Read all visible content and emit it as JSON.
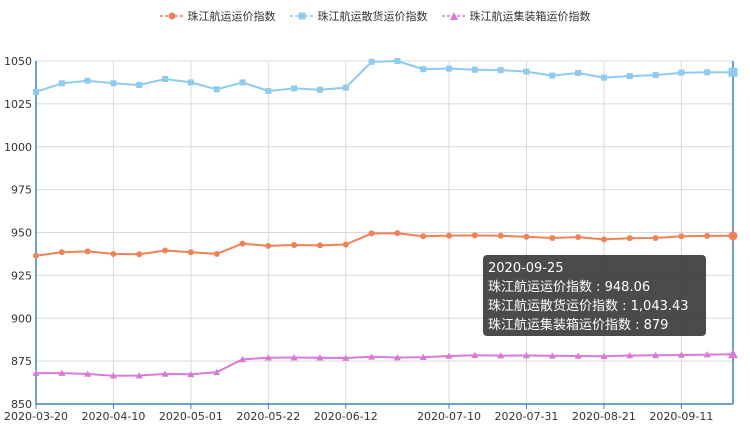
{
  "chart_data": {
    "type": "line",
    "title": "",
    "xlabel": "",
    "ylabel": "",
    "ylim": [
      850,
      1050
    ],
    "yticks": [
      850,
      875,
      900,
      925,
      950,
      975,
      1000,
      1025,
      1050
    ],
    "xticks": [
      "2020-03-20",
      "2020-04-10",
      "2020-05-01",
      "2020-05-22",
      "2020-06-12",
      "2020-07-10",
      "2020-07-31",
      "2020-08-21",
      "2020-09-11"
    ],
    "x": [
      "2020-03-20",
      "2020-03-27",
      "2020-04-03",
      "2020-04-10",
      "2020-04-17",
      "2020-04-24",
      "2020-05-01",
      "2020-05-08",
      "2020-05-15",
      "2020-05-22",
      "2020-05-29",
      "2020-06-05",
      "2020-06-12",
      "2020-06-19",
      "2020-06-26",
      "2020-07-03",
      "2020-07-10",
      "2020-07-17",
      "2020-07-24",
      "2020-07-31",
      "2020-08-07",
      "2020-08-14",
      "2020-08-21",
      "2020-08-28",
      "2020-09-04",
      "2020-09-11",
      "2020-09-18",
      "2020-09-25"
    ],
    "series": [
      {
        "name": "珠江航运运价指数",
        "color": "#f08257",
        "marker": "circle",
        "values": [
          936.5,
          938.5,
          939,
          937.5,
          937.3,
          939.5,
          938.5,
          937.5,
          943.5,
          942.2,
          942.7,
          942.5,
          943,
          949.5,
          949.6,
          947.8,
          948.2,
          948.3,
          948.1,
          947.5,
          946.8,
          947.3,
          946,
          946.7,
          946.8,
          947.8,
          948,
          948.06
        ]
      },
      {
        "name": "珠江航运散货运价指数",
        "color": "#8ecbef",
        "marker": "square",
        "values": [
          1032,
          1037,
          1038.5,
          1037,
          1036,
          1039.5,
          1037.5,
          1033.5,
          1037.5,
          1032.5,
          1034,
          1033.2,
          1034.5,
          1049.5,
          1050,
          1045.2,
          1045.6,
          1044.9,
          1044.7,
          1043.8,
          1041.5,
          1043,
          1040.3,
          1041.2,
          1041.8,
          1043.2,
          1043.4,
          1043.43
        ]
      },
      {
        "name": "珠江航运集装箱运价指数",
        "color": "#d97ad7",
        "marker": "triangle",
        "values": [
          868,
          868,
          867.5,
          866.5,
          866.6,
          867.5,
          867.3,
          868.5,
          876,
          877,
          877.1,
          877,
          876.8,
          877.5,
          877.1,
          877.3,
          878,
          878.4,
          878.2,
          878.3,
          878.1,
          878,
          877.8,
          878.3,
          878.4,
          878.6,
          878.8,
          879
        ]
      }
    ],
    "grid": true,
    "legend_position": "top"
  },
  "tooltip": {
    "date": "2020-09-25",
    "line1": "珠江航运运价指数 : 948.06",
    "line2": "珠江航运散货运价指数 : 1,043.43",
    "line3": "珠江航运集装箱运价指数 : 879"
  },
  "colors": {
    "axis": "#3b82c4",
    "grid": "#d9d9d9",
    "tick_text": "#333333"
  }
}
